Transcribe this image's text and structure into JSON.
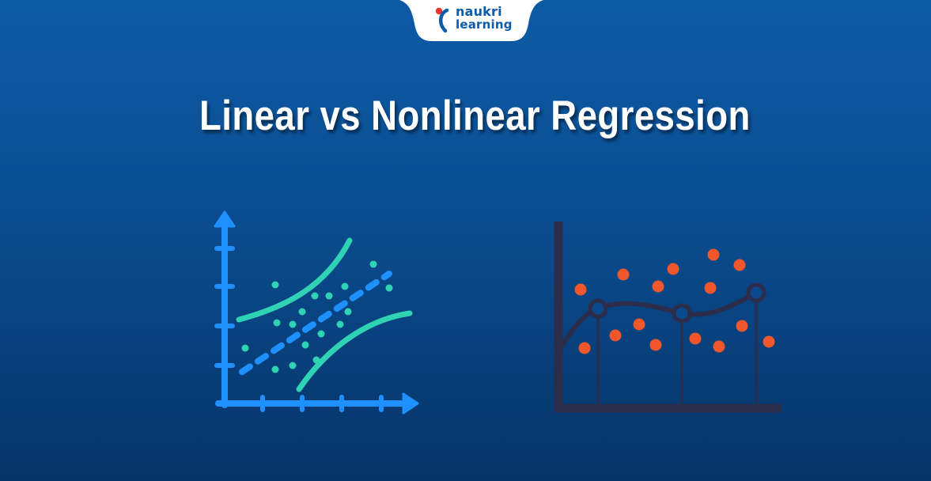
{
  "brand": {
    "line1": "naukri",
    "line2": "learning",
    "mark_color": "#e8342c",
    "text_color": "#0b5cab"
  },
  "title": "Linear vs Nonlinear Regression",
  "colors": {
    "background_top": "#0d5aa5",
    "background_bottom": "#063468",
    "linear_axis": "#1e90ff",
    "linear_points": "#2fd3b4",
    "linear_fit": "#1e90ff",
    "nonlinear_axis": "#2b2d4a",
    "nonlinear_points": "#f0572d",
    "nonlinear_curve": "#2b2d4a"
  },
  "icons": {
    "linear": "linear-regression-scatter-icon",
    "nonlinear": "nonlinear-regression-curve-icon"
  }
}
